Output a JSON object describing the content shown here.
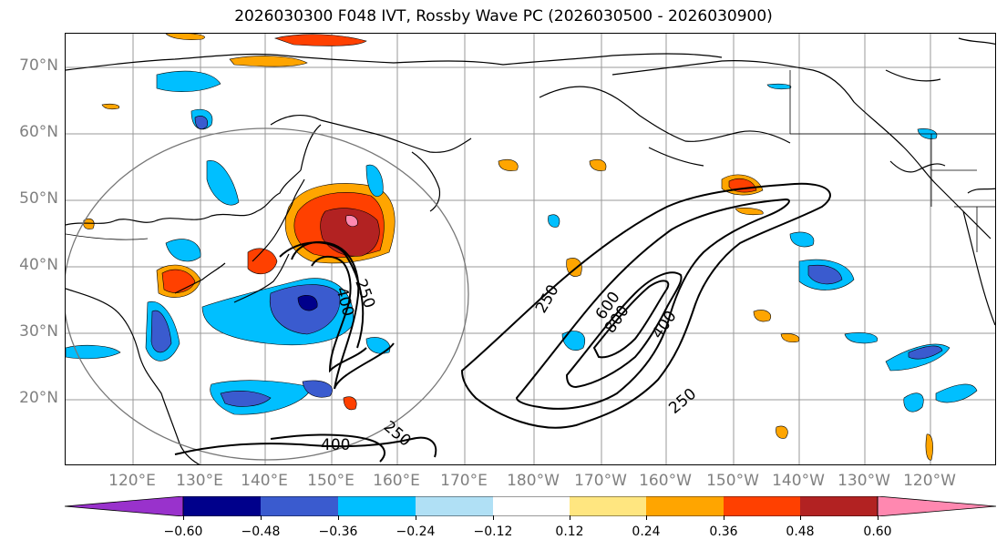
{
  "title": "2026030300 F048 IVT, Rossby Wave PC (2026030500 - 2026030900)",
  "lat_labels": [
    "70°N",
    "60°N",
    "50°N",
    "40°N",
    "30°N",
    "20°N"
  ],
  "lon_labels": [
    "120°E",
    "130°E",
    "140°E",
    "150°E",
    "160°E",
    "170°E",
    "180°W",
    "170°W",
    "160°W",
    "150°W",
    "140°W",
    "130°W",
    "120°W"
  ],
  "contour_labels": [
    "250",
    "400",
    "250",
    "600",
    "800",
    "400",
    "250",
    "250",
    "400"
  ],
  "colorbar": {
    "colors": [
      "#9932CC",
      "#00008B",
      "#3a5bcf",
      "#00bfff",
      "#b0e0f5",
      "#ffffff",
      "#ffe680",
      "#ffa500",
      "#ff4000",
      "#b22222",
      "#ff88b0"
    ],
    "ticks": [
      "−0.60",
      "−0.48",
      "−0.36",
      "−0.24",
      "−0.12",
      "0.12",
      "0.24",
      "0.36",
      "0.48",
      "0.60"
    ]
  }
}
